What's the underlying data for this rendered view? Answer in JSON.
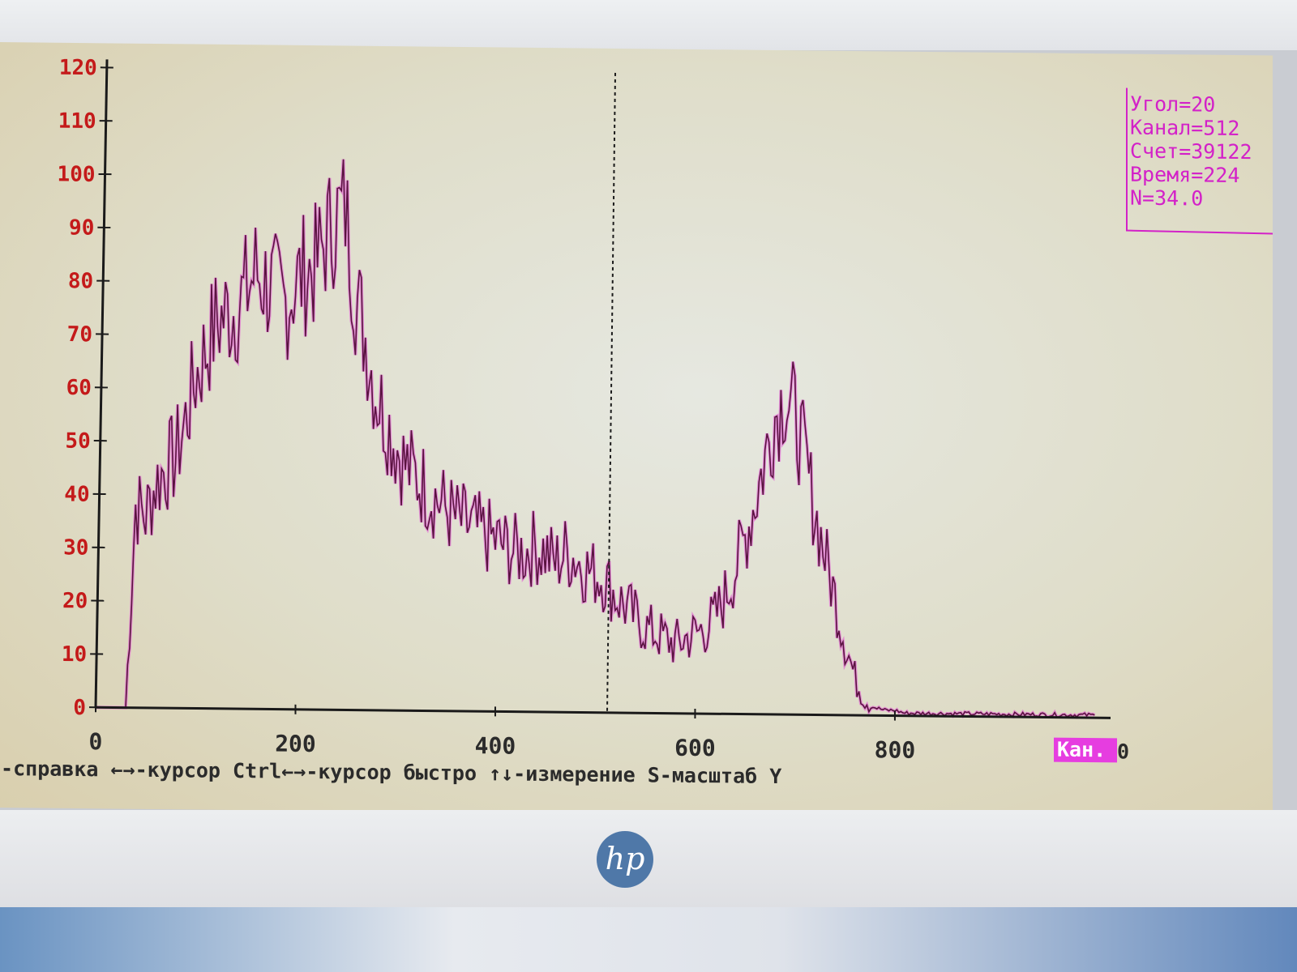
{
  "colors": {
    "axis": "#1a1a1a",
    "tick_label": "#c41a1a",
    "series": "#5a1240",
    "series_glow": "#e52fd6",
    "info_text": "#d321c8",
    "status_text": "#2b2b2b",
    "highlight_bg": "#e63de0"
  },
  "info_panel": {
    "lines": [
      "Угол=20",
      "Канал=512",
      "Счет=39122",
      "Время=224",
      "N=34.0"
    ]
  },
  "status_bar": {
    "text": "1-справка ←→-курсор Ctrl←→-курсор быстро ↑↓-измерение S-масштаб Y",
    "axis_label": "Кан.",
    "axis_label_suffix": "0"
  },
  "chart_data": {
    "type": "line",
    "title": "",
    "xlabel": "",
    "ylabel": "",
    "xlim": [
      0,
      1024
    ],
    "ylim": [
      0,
      120
    ],
    "x_ticks": [
      0,
      200,
      400,
      600,
      800
    ],
    "y_ticks": [
      0,
      10,
      20,
      30,
      40,
      50,
      60,
      70,
      80,
      90,
      100,
      110,
      120
    ],
    "cursor_x": 512,
    "grid": false,
    "legend": "none",
    "series": [
      {
        "step": 10,
        "x": [
          30,
          40,
          50,
          60,
          70,
          80,
          90,
          100,
          110,
          120,
          130,
          140,
          150,
          160,
          170,
          180,
          190,
          200,
          210,
          220,
          230,
          240,
          250,
          260,
          270,
          280,
          290,
          300,
          310,
          320,
          330,
          340,
          350,
          360,
          370,
          380,
          390,
          400,
          410,
          420,
          430,
          440,
          450,
          460,
          470,
          480,
          490,
          500,
          510,
          520,
          530,
          540,
          550,
          560,
          570,
          580,
          590,
          600,
          610,
          620,
          630,
          640,
          650,
          660,
          670,
          680,
          690,
          700,
          710,
          720,
          730,
          740,
          750,
          760,
          770,
          780,
          790,
          800,
          810,
          820,
          830,
          840,
          850,
          860,
          870,
          880,
          890,
          900,
          910,
          920,
          930,
          940,
          950,
          960,
          970,
          980,
          990,
          1000
        ],
        "values": [
          0,
          38,
          36,
          42,
          45,
          47,
          54,
          62,
          67,
          72,
          74,
          75,
          78,
          82,
          80,
          78,
          76,
          80,
          82,
          83,
          88,
          92,
          94,
          78,
          70,
          60,
          55,
          50,
          46,
          44,
          42,
          40,
          38,
          36,
          35,
          34,
          33,
          32,
          31,
          30,
          30,
          31,
          30,
          28,
          30,
          29,
          27,
          26,
          25,
          22,
          20,
          18,
          16,
          15,
          14,
          13,
          14,
          15,
          16,
          18,
          22,
          27,
          33,
          40,
          48,
          56,
          60,
          56,
          48,
          38,
          30,
          22,
          14,
          7,
          3,
          1.5,
          1,
          1,
          0.5,
          0.5,
          0.5,
          0.5,
          0.5,
          0.5,
          0.5,
          0.5,
          0.5,
          0.5,
          0.5,
          0.5,
          0.5,
          0.5,
          0.5,
          0.5,
          0.5,
          0.5,
          0.5,
          0.5
        ]
      }
    ]
  }
}
